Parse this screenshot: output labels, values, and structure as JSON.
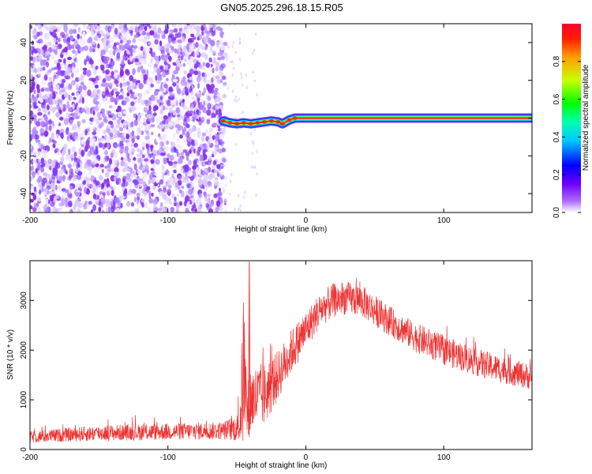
{
  "title": "GN05.2025.296.18.15.R05",
  "chart_data": [
    {
      "type": "heatmap",
      "name": "spectrogram",
      "xlabel": "Height of straight line (km)",
      "ylabel": "Frequency (Hz)",
      "xlim": [
        -200,
        164
      ],
      "ylim": [
        -50,
        50
      ],
      "xticks": [
        -200,
        -100,
        0,
        100
      ],
      "yticks": [
        -40,
        -20,
        0,
        20,
        40
      ],
      "noise_region": [
        -200,
        -58
      ],
      "signal_onset_km": -58,
      "signal_frequency_hz": [
        {
          "x": -60,
          "f": -1.5
        },
        {
          "x": -55,
          "f": -2.5
        },
        {
          "x": -50,
          "f": -3
        },
        {
          "x": -45,
          "f": -2.5
        },
        {
          "x": -40,
          "f": -3
        },
        {
          "x": -35,
          "f": -2.5
        },
        {
          "x": -30,
          "f": -2
        },
        {
          "x": -25,
          "f": -1.5
        },
        {
          "x": -20,
          "f": -2
        },
        {
          "x": -17,
          "f": -3
        },
        {
          "x": -12,
          "f": -1
        },
        {
          "x": -8,
          "f": 0
        },
        {
          "x": 0,
          "f": 0
        },
        {
          "x": 164,
          "f": 0
        }
      ],
      "colorbar": {
        "label": "Normalized spectral amplitude",
        "ticks": [
          0.0,
          0.2,
          0.4,
          0.6,
          0.8
        ],
        "tick_labels": [
          "0.0",
          "0.2",
          "0.4",
          "0.6",
          "0.8"
        ],
        "range": [
          0,
          1
        ]
      }
    },
    {
      "type": "line",
      "name": "snr",
      "xlabel": "Height of straight line (km)",
      "ylabel": "SNR (10 * v/v)",
      "xlim": [
        -200,
        164
      ],
      "ylim": [
        0,
        3800
      ],
      "xticks": [
        -200,
        -100,
        0,
        100
      ],
      "yticks": [
        0,
        1000,
        2000,
        3000
      ],
      "color": "#ee3333",
      "envelope": {
        "x": [
          -200,
          -150,
          -100,
          -60,
          -48,
          -45,
          -43,
          -40,
          -30,
          -20,
          -10,
          0,
          10,
          20,
          30,
          40,
          60,
          80,
          100,
          130,
          164
        ],
        "mean": [
          250,
          330,
          360,
          380,
          450,
          1700,
          800,
          1000,
          1100,
          1500,
          2000,
          2400,
          2800,
          3000,
          3050,
          3000,
          2600,
          2250,
          2000,
          1700,
          1450
        ],
        "noise": [
          120,
          160,
          170,
          180,
          300,
          1800,
          700,
          700,
          650,
          500,
          450,
          400,
          350,
          350,
          330,
          330,
          300,
          300,
          300,
          280,
          260
        ]
      }
    }
  ],
  "colors": {
    "noise": [
      "#7f3dff",
      "#8a2be2",
      "#b38bff",
      "#d9c8ff",
      "#efe6ff"
    ],
    "line": "#ee3333"
  }
}
